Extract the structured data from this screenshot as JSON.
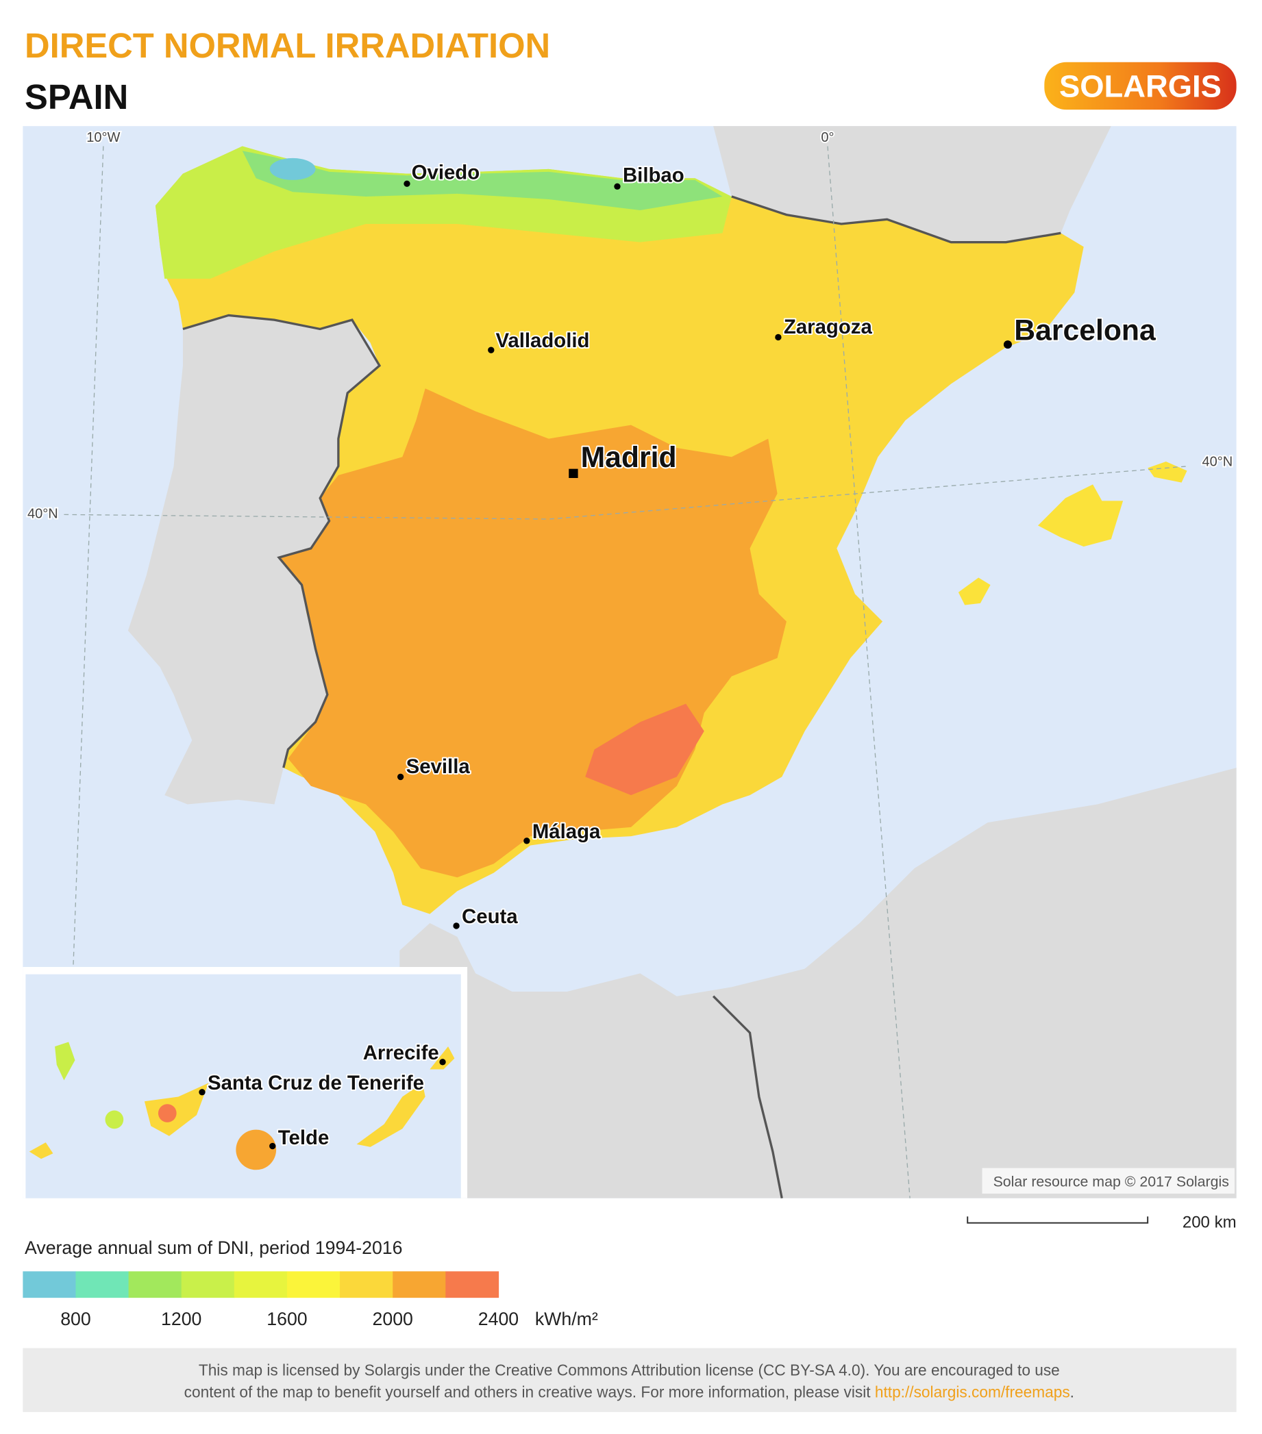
{
  "header": {
    "title": "DIRECT NORMAL IRRADIATION",
    "subtitle": "SPAIN",
    "logo": "SOLARGIS"
  },
  "map": {
    "graticule": [
      "10°W",
      "0°",
      "40°N",
      "40°N"
    ],
    "cities": [
      "Oviedo",
      "Bilbao",
      "Valladolid",
      "Zaragoza",
      "Barcelona",
      "Madrid",
      "Sevilla",
      "Málaga",
      "Ceuta",
      "Arrecife",
      "Santa Cruz de Tenerife",
      "Telde"
    ],
    "copyright": "Solar resource map © 2017 Solargis",
    "scale_bar": "200 km"
  },
  "legend": {
    "title": "Average annual sum of DNI, period 1994-2016",
    "lim": [
      600,
      2400
    ],
    "ticks": [
      800,
      1200,
      1600,
      2000,
      2400
    ],
    "unit": "kWh/m²",
    "colors": [
      "#72c9d9",
      "#70e6b6",
      "#a2e85c",
      "#c9f04a",
      "#e7f43e",
      "#fbf43a",
      "#fbd83a",
      "#f7a632",
      "#f67a4c"
    ]
  },
  "footer": {
    "line1": "This map is licensed by Solargis under the Creative Commons Attribution license (CC BY-SA 4.0). You are encouraged to use",
    "line2": "content of the map to benefit yourself and others in creative ways. For more information, please visit ",
    "link": "http://solargis.com/freemaps",
    "line2_end": "."
  }
}
